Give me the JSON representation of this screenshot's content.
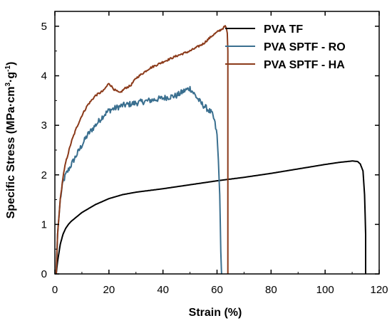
{
  "chart_data": {
    "type": "line",
    "title": "",
    "xlabel": "Strain (%)",
    "ylabel": {
      "prefix": "Specific Stress (MPa·cm",
      "sup1": "3",
      "middle": "·g",
      "sup2": "-1",
      "suffix": ")"
    },
    "xlim": [
      0,
      120
    ],
    "ylim": [
      0,
      5.3
    ],
    "xticks": [
      0,
      20,
      40,
      60,
      80,
      100,
      120
    ],
    "yticks": [
      0,
      1,
      2,
      3,
      4,
      5
    ],
    "grid": false,
    "legend_position": "top-right",
    "series": [
      {
        "name": "PVA TF",
        "color": "#000000",
        "noise": 0,
        "x": [
          0.5,
          1,
          2,
          3,
          4,
          5,
          6,
          8,
          10,
          15,
          20,
          25,
          30,
          40,
          50,
          60,
          70,
          80,
          90,
          100,
          105,
          110,
          112,
          113,
          114,
          114.6,
          115,
          115
        ],
        "y": [
          0,
          0.25,
          0.6,
          0.8,
          0.92,
          1.0,
          1.06,
          1.15,
          1.24,
          1.4,
          1.52,
          1.6,
          1.65,
          1.72,
          1.8,
          1.88,
          1.95,
          2.03,
          2.12,
          2.21,
          2.25,
          2.28,
          2.27,
          2.22,
          2.08,
          1.6,
          0.8,
          0
        ]
      },
      {
        "name": "PVA SPTF - RO",
        "color": "#3a6f8f",
        "noise": 0.06,
        "x": [
          0.5,
          1,
          2,
          3,
          4,
          5,
          6,
          8,
          10,
          12,
          15,
          18,
          20,
          25,
          30,
          35,
          40,
          45,
          48,
          50,
          52,
          54,
          56,
          58,
          59,
          60,
          60.5,
          61,
          61.2,
          61.4,
          61.6,
          61.7
        ],
        "y": [
          0,
          0.8,
          1.5,
          1.85,
          2.0,
          2.1,
          2.2,
          2.4,
          2.6,
          2.8,
          3.0,
          3.2,
          3.3,
          3.4,
          3.45,
          3.5,
          3.55,
          3.6,
          3.7,
          3.75,
          3.6,
          3.45,
          3.35,
          3.25,
          3.1,
          2.8,
          2.3,
          1.6,
          1.0,
          0.5,
          0.1,
          0
        ]
      },
      {
        "name": "PVA SPTF - HA",
        "color": "#8b3a1a",
        "noise": 0.02,
        "x": [
          0.5,
          1,
          2,
          3,
          4,
          5,
          6,
          8,
          10,
          12,
          15,
          18,
          20,
          22,
          24,
          26,
          28,
          30,
          35,
          40,
          45,
          50,
          55,
          58,
          60,
          62,
          63,
          63.5,
          63.8,
          64,
          64,
          64
        ],
        "y": [
          0,
          0.8,
          1.5,
          1.95,
          2.25,
          2.45,
          2.65,
          2.95,
          3.2,
          3.4,
          3.6,
          3.7,
          3.85,
          3.72,
          3.65,
          3.75,
          3.8,
          3.95,
          4.15,
          4.28,
          4.4,
          4.5,
          4.65,
          4.8,
          4.88,
          4.95,
          5.0,
          4.95,
          4.85,
          4.5,
          2.0,
          0
        ]
      }
    ]
  }
}
